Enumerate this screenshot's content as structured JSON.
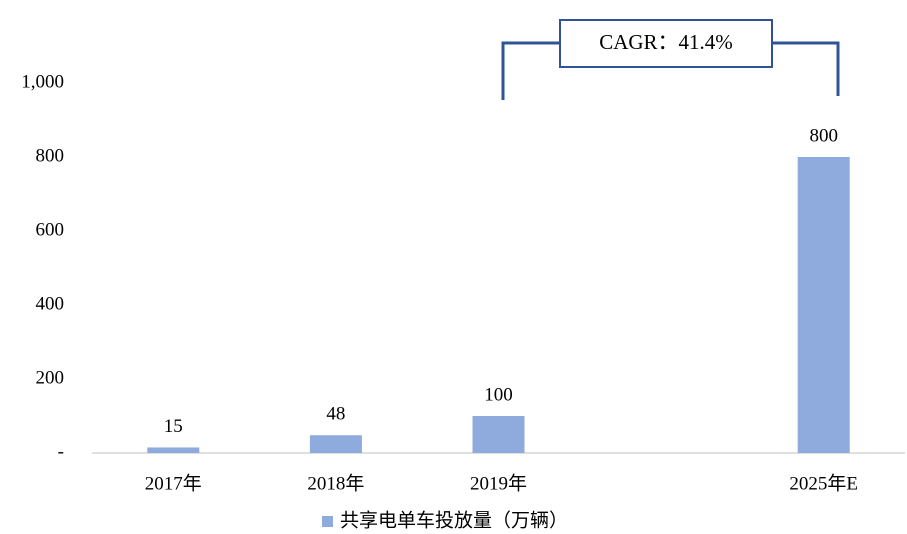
{
  "chart_data": {
    "type": "bar",
    "categories": [
      "2017年",
      "2018年",
      "2019年",
      null,
      "2025年E"
    ],
    "series": [
      {
        "name": "共享电单车投放量（万辆）",
        "color": "#8faadc",
        "values": [
          15,
          48,
          100,
          null,
          800
        ]
      }
    ],
    "ylim": [
      0,
      1000
    ],
    "yticks": [
      {
        "value": 0,
        "label": "-"
      },
      200,
      400,
      600,
      800,
      {
        "value": 1000,
        "label": "1,000"
      }
    ],
    "grid": false,
    "legend": "bottom",
    "annotations": [
      "CAGR：41.4%"
    ]
  }
}
